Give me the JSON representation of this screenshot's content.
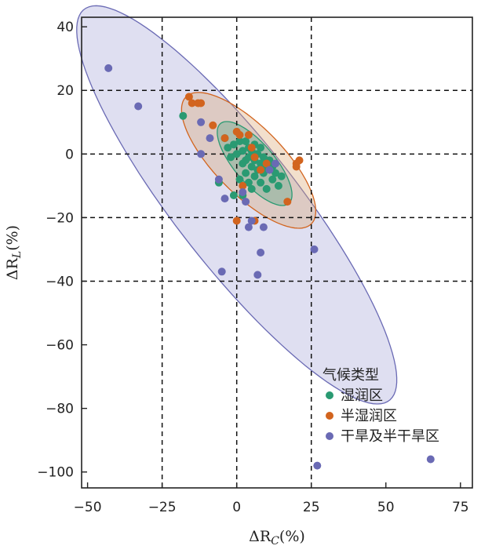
{
  "chart_data": {
    "type": "scatter",
    "title": "",
    "xlabel": {
      "symbol": "ΔR",
      "sub": "C",
      "unit": "(%)"
    },
    "ylabel": {
      "symbol": "ΔR",
      "sub": "L",
      "unit": "(%)"
    },
    "xlim": [
      -52,
      79
    ],
    "ylim": [
      -105,
      43
    ],
    "xticks": [
      -50,
      -25,
      0,
      25,
      50,
      75
    ],
    "yticks": [
      40,
      20,
      0,
      -20,
      -40,
      -60,
      -80,
      -100
    ],
    "xtick_labels": [
      "−50",
      "−25",
      "0",
      "25",
      "50",
      "75"
    ],
    "ytick_labels": [
      "40",
      "20",
      "0",
      "−20",
      "−40",
      "−60",
      "−80",
      "−100"
    ],
    "ref_lines_x": [
      -25,
      0,
      25
    ],
    "ref_lines_y": [
      20,
      0,
      -20,
      -40
    ],
    "legend": {
      "title": "气候类型",
      "placement": "lower-right"
    },
    "series": [
      {
        "name": "湿润区",
        "color": "#2a9a72",
        "ellipse": {
          "center": [
            6,
            -3
          ],
          "semi_axes": [
            17,
            6.5
          ],
          "angle": -47,
          "fill": "#2a9a72",
          "fill_opacity": 0.28,
          "stroke": "#2a9a72"
        },
        "points": [
          [
            -18,
            12
          ],
          [
            -6,
            -9
          ],
          [
            -4,
            5
          ],
          [
            -3,
            2
          ],
          [
            -2,
            -1
          ],
          [
            -1,
            3
          ],
          [
            0,
            0
          ],
          [
            1,
            4
          ],
          [
            2,
            -3
          ],
          [
            2,
            1
          ],
          [
            3,
            -6
          ],
          [
            3,
            4
          ],
          [
            4,
            -1
          ],
          [
            4,
            2
          ],
          [
            5,
            -4
          ],
          [
            5,
            1
          ],
          [
            6,
            -7
          ],
          [
            6,
            -2
          ],
          [
            6,
            3
          ],
          [
            7,
            -5
          ],
          [
            7,
            0
          ],
          [
            8,
            -9
          ],
          [
            8,
            -3
          ],
          [
            8,
            2
          ],
          [
            9,
            -6
          ],
          [
            9,
            -1
          ],
          [
            10,
            -11
          ],
          [
            10,
            -4
          ],
          [
            11,
            -2
          ],
          [
            12,
            -8
          ],
          [
            12,
            -4
          ],
          [
            13,
            -6
          ],
          [
            14,
            -10
          ],
          [
            15,
            -7
          ],
          [
            2,
            -13
          ],
          [
            4,
            -9
          ],
          [
            -1,
            -13
          ],
          [
            1,
            -8
          ],
          [
            3,
            -2
          ],
          [
            5,
            -11
          ]
        ]
      },
      {
        "name": "半湿润区",
        "color": "#d2641e",
        "ellipse": {
          "center": [
            4,
            -2
          ],
          "semi_axes": [
            29,
            11
          ],
          "angle": -43,
          "fill": "#d9a36c",
          "fill_opacity": 0.35,
          "stroke": "#d2641e"
        },
        "points": [
          [
            -16,
            18
          ],
          [
            -15,
            16
          ],
          [
            -13,
            16
          ],
          [
            -12,
            16
          ],
          [
            -8,
            9
          ],
          [
            -4,
            5
          ],
          [
            0,
            7
          ],
          [
            1,
            6
          ],
          [
            4,
            6
          ],
          [
            5,
            2
          ],
          [
            6,
            -1
          ],
          [
            8,
            -5
          ],
          [
            10,
            -3
          ],
          [
            17,
            -15
          ],
          [
            20,
            -4
          ],
          [
            20,
            -3
          ],
          [
            21,
            -2
          ],
          [
            0,
            -21
          ],
          [
            6,
            -21
          ],
          [
            2,
            -10
          ]
        ]
      },
      {
        "name": "干旱及半干旱区",
        "color": "#6a6ab4",
        "ellipse": {
          "center": [
            0,
            -16
          ],
          "semi_axes": [
            80,
            20
          ],
          "angle": -50,
          "fill": "#a4a4d8",
          "fill_opacity": 0.35,
          "stroke": "#6a6ab4"
        },
        "points": [
          [
            -43,
            27
          ],
          [
            -33,
            15
          ],
          [
            -12,
            10
          ],
          [
            -12,
            0
          ],
          [
            -9,
            5
          ],
          [
            -6,
            -8
          ],
          [
            -4,
            -14
          ],
          [
            -5,
            -37
          ],
          [
            3,
            -15
          ],
          [
            4,
            -23
          ],
          [
            5,
            -21
          ],
          [
            7,
            -38
          ],
          [
            8,
            -31
          ],
          [
            9,
            -23
          ],
          [
            26,
            -30
          ],
          [
            27,
            -98
          ],
          [
            65,
            -96
          ],
          [
            11,
            -5
          ],
          [
            13,
            -3
          ],
          [
            2,
            -12
          ]
        ]
      }
    ]
  }
}
